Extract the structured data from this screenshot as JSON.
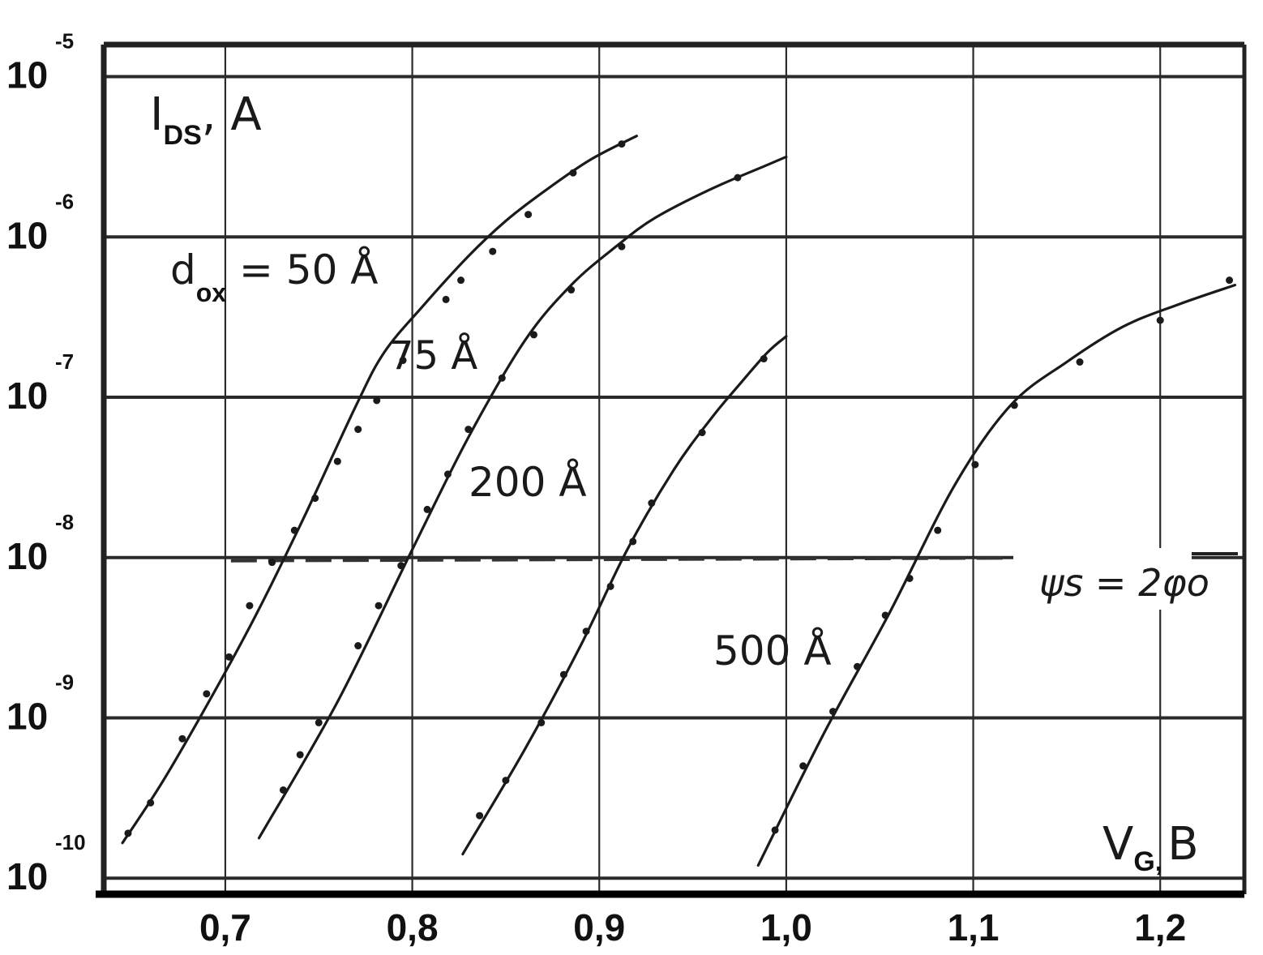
{
  "chart_data": {
    "type": "line",
    "ylabel": {
      "main": "I",
      "sub": "DS",
      "unit": ", A"
    },
    "xlabel": {
      "main": "V",
      "sub": "G,",
      "unit": "B"
    },
    "x_ticks": [
      "0,7",
      "0,8",
      "0,9",
      "1,0",
      "1,1",
      "1,2"
    ],
    "y_ticks": [
      {
        "base": "10",
        "exp": "-5"
      },
      {
        "base": "10",
        "exp": "-6"
      },
      {
        "base": "10",
        "exp": "-7"
      },
      {
        "base": "10",
        "exp": "-8"
      },
      {
        "base": "10",
        "exp": "-9"
      },
      {
        "base": "10",
        "exp": "-10"
      }
    ],
    "xlim": [
      0.635,
      1.245
    ],
    "ylim_log10": [
      -10.1,
      -4.8
    ],
    "y_scale": "log",
    "grid": true,
    "series": [
      {
        "name": "d_ox = 50 Å",
        "label_text": {
          "main": "d",
          "sub": "ox",
          "rest": "= 50 Å"
        },
        "points": [
          [
            0.645,
            -9.78
          ],
          [
            0.67,
            -9.33
          ],
          [
            0.71,
            -8.5
          ],
          [
            0.74,
            -7.8
          ],
          [
            0.77,
            -7.05
          ],
          [
            0.785,
            -6.72
          ],
          [
            0.805,
            -6.44
          ],
          [
            0.83,
            -6.12
          ],
          [
            0.85,
            -5.9
          ],
          [
            0.87,
            -5.72
          ],
          [
            0.895,
            -5.52
          ],
          [
            0.92,
            -5.37
          ]
        ],
        "markers": [
          [
            0.648,
            -9.72
          ],
          [
            0.66,
            -9.53
          ],
          [
            0.677,
            -9.13
          ],
          [
            0.69,
            -8.85
          ],
          [
            0.702,
            -8.62
          ],
          [
            0.713,
            -8.3
          ],
          [
            0.725,
            -8.03
          ],
          [
            0.737,
            -7.83
          ],
          [
            0.748,
            -7.63
          ],
          [
            0.76,
            -7.4
          ],
          [
            0.771,
            -7.2
          ],
          [
            0.781,
            -7.02
          ],
          [
            0.795,
            -6.77
          ],
          [
            0.818,
            -6.39
          ],
          [
            0.826,
            -6.27
          ],
          [
            0.843,
            -6.09
          ],
          [
            0.862,
            -5.86
          ],
          [
            0.886,
            -5.6
          ],
          [
            0.912,
            -5.42
          ]
        ]
      },
      {
        "name": "75 Å",
        "label_text": "75 Å",
        "points": [
          [
            0.718,
            -9.75
          ],
          [
            0.76,
            -8.9
          ],
          [
            0.8,
            -7.95
          ],
          [
            0.83,
            -7.25
          ],
          [
            0.86,
            -6.65
          ],
          [
            0.885,
            -6.3
          ],
          [
            0.91,
            -6.05
          ],
          [
            0.93,
            -5.88
          ],
          [
            0.96,
            -5.7
          ],
          [
            0.99,
            -5.55
          ],
          [
            1.0,
            -5.5
          ]
        ],
        "markers": [
          [
            0.731,
            -9.45
          ],
          [
            0.74,
            -9.23
          ],
          [
            0.75,
            -9.03
          ],
          [
            0.771,
            -8.55
          ],
          [
            0.782,
            -8.3
          ],
          [
            0.794,
            -8.05
          ],
          [
            0.808,
            -7.7
          ],
          [
            0.819,
            -7.48
          ],
          [
            0.83,
            -7.2
          ],
          [
            0.848,
            -6.88
          ],
          [
            0.865,
            -6.61
          ],
          [
            0.885,
            -6.33
          ],
          [
            0.912,
            -6.06
          ],
          [
            0.974,
            -5.63
          ]
        ]
      },
      {
        "name": "200 Å",
        "label_text": "200 Å",
        "points": [
          [
            0.827,
            -9.85
          ],
          [
            0.86,
            -9.2
          ],
          [
            0.89,
            -8.55
          ],
          [
            0.915,
            -7.95
          ],
          [
            0.94,
            -7.45
          ],
          [
            0.96,
            -7.13
          ],
          [
            0.975,
            -6.92
          ],
          [
            0.99,
            -6.72
          ],
          [
            1.0,
            -6.62
          ]
        ],
        "markers": [
          [
            0.836,
            -9.61
          ],
          [
            0.85,
            -9.39
          ],
          [
            0.869,
            -9.03
          ],
          [
            0.881,
            -8.73
          ],
          [
            0.893,
            -8.46
          ],
          [
            0.906,
            -8.18
          ],
          [
            0.918,
            -7.9
          ],
          [
            0.928,
            -7.66
          ],
          [
            0.955,
            -7.22
          ],
          [
            0.988,
            -6.76
          ]
        ]
      },
      {
        "name": "500 Å",
        "label_text": "500 Å",
        "points": [
          [
            0.985,
            -9.92
          ],
          [
            1.02,
            -9.1
          ],
          [
            1.055,
            -8.35
          ],
          [
            1.09,
            -7.55
          ],
          [
            1.12,
            -7.05
          ],
          [
            1.15,
            -6.78
          ],
          [
            1.18,
            -6.56
          ],
          [
            1.21,
            -6.42
          ],
          [
            1.24,
            -6.3
          ]
        ],
        "markers": [
          [
            0.994,
            -9.7
          ],
          [
            1.009,
            -9.3
          ],
          [
            1.025,
            -8.96
          ],
          [
            1.038,
            -8.68
          ],
          [
            1.053,
            -8.36
          ],
          [
            1.066,
            -8.13
          ],
          [
            1.081,
            -7.83
          ],
          [
            1.101,
            -7.42
          ],
          [
            1.122,
            -7.05
          ],
          [
            1.157,
            -6.78
          ],
          [
            1.2,
            -6.52
          ],
          [
            1.237,
            -6.27
          ]
        ]
      }
    ],
    "reference_line": {
      "style": "dashed",
      "label": "ψs = 2φo",
      "y_log10": -8.02,
      "x_range": [
        0.703,
        1.197
      ]
    }
  }
}
